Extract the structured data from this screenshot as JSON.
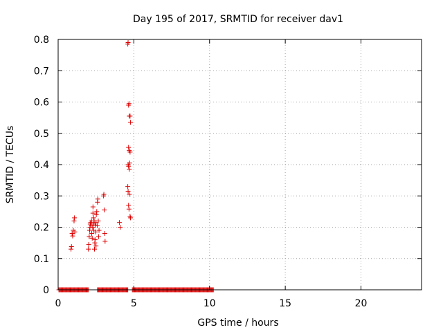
{
  "chart_data": {
    "type": "scatter",
    "title": "Day 195 of 2017, SRMTID for receiver dav1",
    "xlabel": "GPS time / hours",
    "ylabel": "SRMTID / TECUs",
    "xlim": [
      0,
      24
    ],
    "ylim": [
      0,
      0.8
    ],
    "xticks": [
      0,
      5,
      10,
      15,
      20
    ],
    "yticks": [
      0,
      0.1,
      0.2,
      0.3,
      0.4,
      0.5,
      0.6,
      0.7,
      0.8
    ],
    "xtick_labels": [
      "0",
      "5",
      "10",
      "15",
      "20"
    ],
    "ytick_labels": [
      "0",
      "0.1",
      "0.2",
      "0.3",
      "0.4",
      "0.5",
      "0.6",
      "0.7",
      "0.8"
    ],
    "grid": true,
    "marker": "+",
    "color": "#dd0000",
    "zero_segments": [
      [
        0.05,
        2.0
      ],
      [
        2.6,
        4.6
      ],
      [
        4.9,
        10.25
      ]
    ],
    "zero_step": 0.05,
    "series": [
      {
        "name": "dav1",
        "points": [
          [
            0.85,
            0.13
          ],
          [
            0.88,
            0.138
          ],
          [
            0.92,
            0.18
          ],
          [
            0.96,
            0.172
          ],
          [
            1.0,
            0.19
          ],
          [
            1.05,
            0.22
          ],
          [
            1.08,
            0.23
          ],
          [
            1.1,
            0.185
          ],
          [
            2.0,
            0.13
          ],
          [
            2.02,
            0.145
          ],
          [
            2.05,
            0.17
          ],
          [
            2.08,
            0.19
          ],
          [
            2.1,
            0.2
          ],
          [
            2.12,
            0.21
          ],
          [
            2.15,
            0.215
          ],
          [
            2.18,
            0.205
          ],
          [
            2.2,
            0.22
          ],
          [
            2.22,
            0.18
          ],
          [
            2.25,
            0.165
          ],
          [
            2.28,
            0.2
          ],
          [
            2.3,
            0.265
          ],
          [
            2.32,
            0.21
          ],
          [
            2.35,
            0.19
          ],
          [
            2.38,
            0.22
          ],
          [
            2.4,
            0.13
          ],
          [
            2.42,
            0.15
          ],
          [
            2.45,
            0.205
          ],
          [
            2.48,
            0.185
          ],
          [
            2.5,
            0.215
          ],
          [
            2.52,
            0.24
          ],
          [
            2.55,
            0.25
          ],
          [
            2.58,
            0.205
          ],
          [
            2.6,
            0.28
          ],
          [
            2.62,
            0.29
          ],
          [
            2.65,
            0.22
          ],
          [
            2.67,
            0.17
          ],
          [
            2.7,
            0.19
          ],
          [
            2.3,
            0.245
          ],
          [
            2.34,
            0.23
          ],
          [
            2.44,
            0.16
          ],
          [
            2.5,
            0.14
          ],
          [
            3.0,
            0.3
          ],
          [
            3.02,
            0.305
          ],
          [
            3.05,
            0.255
          ],
          [
            3.08,
            0.18
          ],
          [
            3.1,
            0.155
          ],
          [
            4.05,
            0.215
          ],
          [
            4.1,
            0.2
          ],
          [
            4.6,
            0.785
          ],
          [
            4.62,
            0.79
          ],
          [
            4.65,
            0.59
          ],
          [
            4.68,
            0.595
          ],
          [
            4.7,
            0.555
          ],
          [
            4.75,
            0.555
          ],
          [
            4.78,
            0.535
          ],
          [
            4.65,
            0.455
          ],
          [
            4.7,
            0.445
          ],
          [
            4.75,
            0.44
          ],
          [
            4.62,
            0.4
          ],
          [
            4.65,
            0.395
          ],
          [
            4.7,
            0.385
          ],
          [
            4.72,
            0.405
          ],
          [
            4.6,
            0.33
          ],
          [
            4.62,
            0.315
          ],
          [
            4.7,
            0.305
          ],
          [
            4.65,
            0.27
          ],
          [
            4.68,
            0.258
          ],
          [
            4.75,
            0.235
          ],
          [
            4.78,
            0.23
          ]
        ]
      }
    ]
  }
}
